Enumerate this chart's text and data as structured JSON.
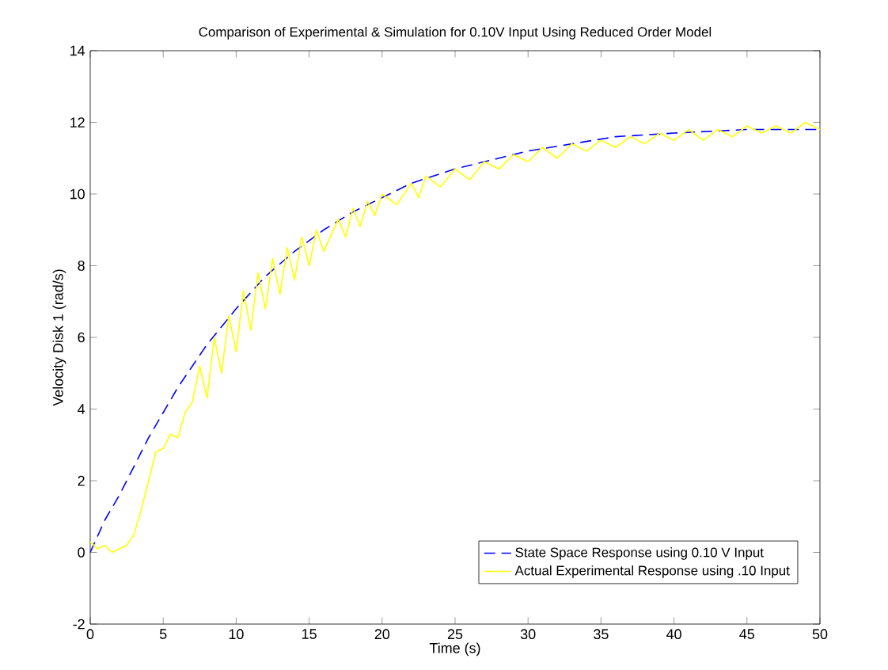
{
  "chart_data": {
    "type": "line",
    "title": "Comparison of Experimental & Simulation for 0.10V Input Using Reduced Order Model",
    "xlabel": "Time (s)",
    "ylabel": "Velocity Disk 1 (rad/s)",
    "xlim": [
      0,
      50
    ],
    "ylim": [
      -2,
      14
    ],
    "xticks": [
      0,
      5,
      10,
      15,
      20,
      25,
      30,
      35,
      40,
      45,
      50
    ],
    "yticks": [
      -2,
      0,
      2,
      4,
      6,
      8,
      10,
      12,
      14
    ],
    "legend": "bottom right",
    "series": [
      {
        "name": "State Space Response using 0.10 V Input",
        "color": "#0000ff",
        "line_style": "dashed",
        "x": [
          0,
          1,
          2,
          3,
          4,
          5,
          6,
          7,
          8,
          9,
          10,
          12,
          14,
          16,
          18,
          20,
          22,
          25,
          28,
          30,
          33,
          36,
          40,
          45,
          50
        ],
        "values": [
          0,
          0.9,
          1.6,
          2.4,
          3.2,
          3.9,
          4.6,
          5.2,
          5.8,
          6.3,
          6.8,
          7.7,
          8.4,
          9.0,
          9.5,
          9.9,
          10.3,
          10.7,
          11.0,
          11.2,
          11.4,
          11.6,
          11.7,
          11.8,
          11.8
        ]
      },
      {
        "name": "Actual Experimental Response using .10 Input",
        "color": "#ffff00",
        "line_style": "solid",
        "x": [
          0,
          0.5,
          1,
          1.5,
          2,
          2.5,
          3,
          3.5,
          4,
          4.5,
          5,
          5.5,
          6,
          6.5,
          7,
          7.5,
          8,
          8.5,
          9,
          9.5,
          10,
          10.5,
          11,
          11.5,
          12,
          12.5,
          13,
          13.5,
          14,
          14.5,
          15,
          15.5,
          16,
          17,
          17.5,
          18,
          18.5,
          19,
          19.5,
          20,
          21,
          22,
          22.5,
          23,
          24,
          25,
          26,
          27,
          28,
          29,
          30,
          31,
          32,
          33,
          34,
          35,
          36,
          37,
          38,
          39,
          40,
          41,
          42,
          43,
          44,
          45,
          46,
          47,
          48,
          49,
          50
        ],
        "values": [
          0.3,
          0.1,
          0.2,
          0.0,
          0.1,
          0.2,
          0.5,
          1.2,
          2.0,
          2.8,
          2.9,
          3.3,
          3.2,
          3.9,
          4.2,
          5.2,
          4.3,
          6.0,
          5.0,
          6.6,
          5.6,
          7.3,
          6.2,
          7.8,
          6.8,
          8.2,
          7.2,
          8.5,
          7.6,
          8.8,
          8.0,
          9.0,
          8.4,
          9.3,
          8.8,
          9.6,
          9.1,
          9.8,
          9.4,
          10.0,
          9.7,
          10.3,
          9.9,
          10.5,
          10.2,
          10.7,
          10.4,
          10.9,
          10.7,
          11.1,
          10.9,
          11.3,
          11.0,
          11.4,
          11.2,
          11.5,
          11.3,
          11.6,
          11.4,
          11.7,
          11.5,
          11.8,
          11.5,
          11.8,
          11.6,
          11.9,
          11.7,
          11.9,
          11.7,
          12.0,
          11.8
        ]
      }
    ]
  }
}
